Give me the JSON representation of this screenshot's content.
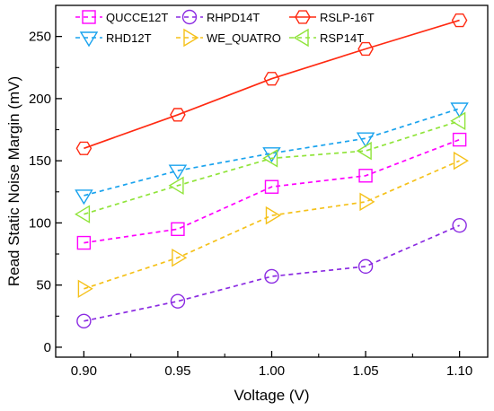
{
  "chart_data": {
    "type": "line",
    "xlabel": "Voltage (V)",
    "ylabel": "Read Static Noise Margin (mV)",
    "x": [
      0.9,
      0.95,
      1.0,
      1.05,
      1.1
    ],
    "x_tick_labels": [
      "0.90",
      "0.95",
      "1.00",
      "1.05",
      "1.10"
    ],
    "xlim": [
      0.885,
      1.115
    ],
    "ylim": [
      -8,
      275
    ],
    "y_ticks": [
      0,
      50,
      100,
      150,
      200,
      250
    ],
    "y_tick_labels": [
      "0",
      "50",
      "100",
      "150",
      "200",
      "250"
    ],
    "grid": false,
    "legend_position": "top",
    "series": [
      {
        "name": "QUCCE12T",
        "values": [
          84,
          95,
          129,
          138,
          167
        ],
        "color": "#ff00ff",
        "marker": "square",
        "dash": "dashed"
      },
      {
        "name": "RHPD14T",
        "values": [
          21,
          37,
          57,
          65,
          98
        ],
        "color": "#8b2be2",
        "marker": "circle",
        "dash": "dashed"
      },
      {
        "name": "RSLP-16T",
        "values": [
          160,
          187,
          216,
          240,
          263
        ],
        "color": "#ff2a12",
        "marker": "hexagon",
        "dash": "solid"
      },
      {
        "name": "RHD12T",
        "values": [
          122,
          142,
          156,
          168,
          192
        ],
        "color": "#1aa3ee",
        "marker": "triangle-down",
        "dash": "dashed"
      },
      {
        "name": "WE_QUATRO",
        "values": [
          47,
          72,
          106,
          117,
          150
        ],
        "color": "#f5c11a",
        "marker": "triangle-right",
        "dash": "dashed"
      },
      {
        "name": "RSP14T",
        "values": [
          107,
          130,
          152,
          158,
          182
        ],
        "color": "#90e43a",
        "marker": "triangle-left",
        "dash": "dashed"
      }
    ]
  }
}
